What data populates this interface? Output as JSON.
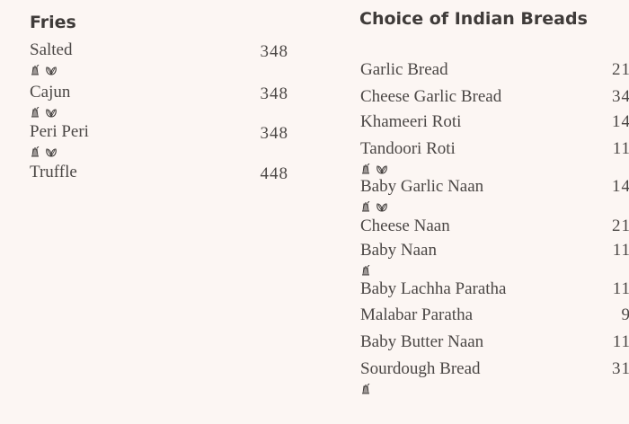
{
  "fries": {
    "title": "Fries",
    "items": [
      {
        "name": "Salted",
        "price": "348",
        "icons": [
          "shaker-icon",
          "leaf-icon"
        ]
      },
      {
        "name": "Cajun",
        "price": "348",
        "icons": [
          "shaker-icon",
          "leaf-icon"
        ]
      },
      {
        "name": "Peri Peri",
        "price": "348",
        "icons": [
          "shaker-icon",
          "leaf-icon"
        ]
      },
      {
        "name": "Truffle",
        "price": "448",
        "icons": []
      }
    ]
  },
  "breads": {
    "title": "Choice of Indian Breads",
    "items": [
      {
        "name": "Garlic Bread",
        "price": "21",
        "icons": []
      },
      {
        "name": "Cheese Garlic Bread",
        "price": "34",
        "icons": []
      },
      {
        "name": "Khameeri Roti",
        "price": "14",
        "icons": []
      },
      {
        "name": "Tandoori Roti",
        "price": "11",
        "icons": [
          "shaker-icon",
          "leaf-icon"
        ]
      },
      {
        "name": "Baby Garlic Naan",
        "price": "14",
        "icons": [
          "shaker-icon",
          "leaf-icon"
        ]
      },
      {
        "name": "Cheese Naan",
        "price": "21",
        "icons": []
      },
      {
        "name": "Baby Naan",
        "price": "11",
        "icons": [
          "shaker-icon"
        ]
      },
      {
        "name": "Baby Lachha Paratha",
        "price": "11",
        "icons": []
      },
      {
        "name": "Malabar Paratha",
        "price": "9",
        "icons": []
      },
      {
        "name": "Baby Butter Naan",
        "price": "11",
        "icons": []
      },
      {
        "name": "Sourdough Bread",
        "price": "31",
        "icons": [
          "shaker-icon"
        ]
      }
    ]
  },
  "colors": {
    "background": "#fcf6f3",
    "text": "#4b4745"
  }
}
